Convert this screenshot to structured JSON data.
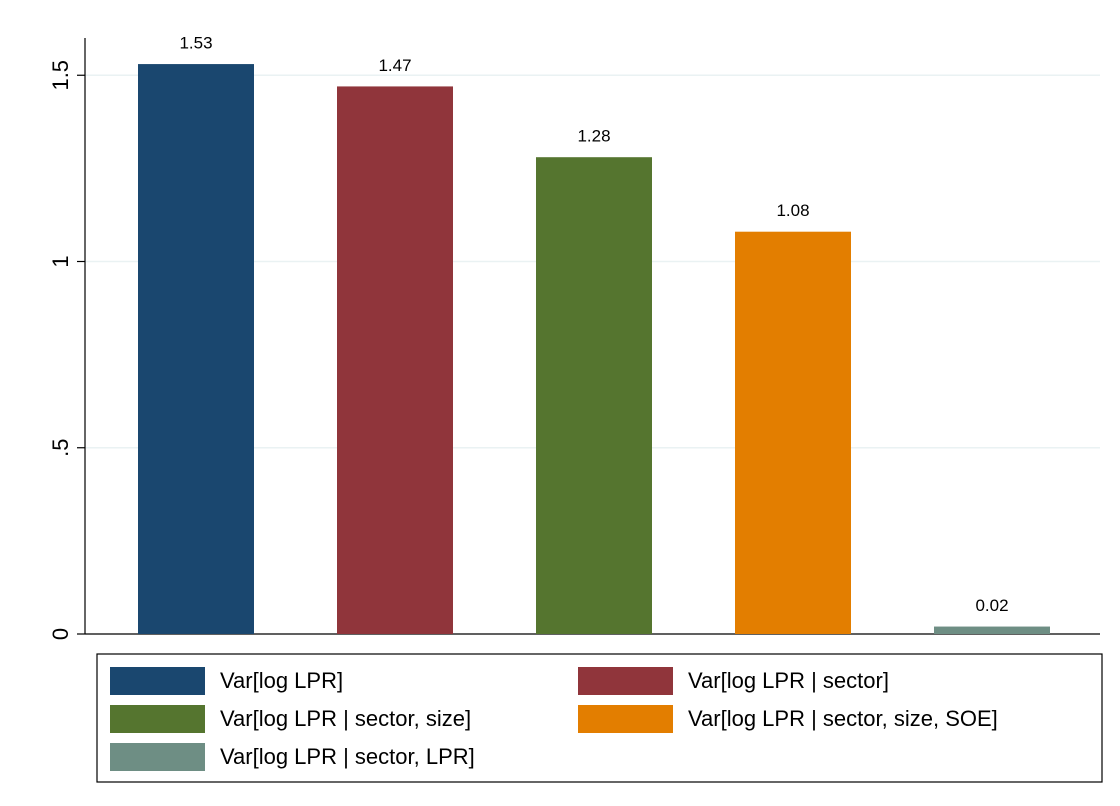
{
  "chart_data": {
    "type": "bar",
    "series": [
      {
        "name": "Var[log LPR]",
        "color": "#1a476f",
        "values": [
          1.53
        ]
      },
      {
        "name": "Var[log LPR | sector]",
        "color": "#90353b",
        "values": [
          1.47
        ]
      },
      {
        "name": "Var[log LPR | sector, size]",
        "color": "#55752f",
        "values": [
          1.28
        ]
      },
      {
        "name": "Var[log LPR | sector, size, SOE]",
        "color": "#e37e00",
        "values": [
          1.08
        ]
      },
      {
        "name": "Var[log LPR | sector, LPR]",
        "color": "#6e8e84",
        "values": [
          0.02
        ]
      }
    ],
    "ylim": [
      0,
      1.6
    ],
    "yticks": [
      0,
      {
        "value": 0.5,
        "label": ".5"
      },
      1,
      1.5
    ],
    "grid": true,
    "legend": "bottom"
  }
}
